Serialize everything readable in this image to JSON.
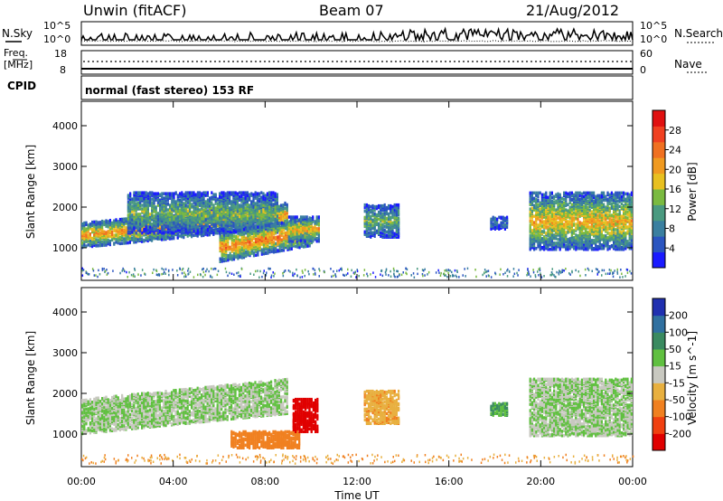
{
  "header": {
    "radar": "Unwin (fitACF)",
    "beam": "Beam 07",
    "date": "21/Aug/2012"
  },
  "sky_panel": {
    "left_label": "N.Sky",
    "right_label": "N.Search",
    "left_ticks": [
      "10^5",
      "10^0"
    ],
    "right_ticks": [
      "10^5",
      "10^0"
    ]
  },
  "freq_panel": {
    "left_label_1": "Freq.",
    "left_label_2": "[MHz]",
    "left_ticks": [
      "18",
      "8"
    ],
    "right_ticks": [
      "60",
      "0"
    ],
    "right_label": "Nave"
  },
  "cpid": {
    "label": "CPID",
    "text": "normal (fast stereo) 153 RF"
  },
  "power_panel": {
    "ylabel": "Slant Range [km]",
    "colorbar_label": "Power [dB]",
    "colorbar_ticks": [
      "28",
      "24",
      "20",
      "16",
      "12",
      "8",
      "4"
    ],
    "colors": [
      "#1a1aff",
      "#2a55c0",
      "#3a7fa0",
      "#4a9a80",
      "#7aba40",
      "#e8c020",
      "#f09a20",
      "#f07020",
      "#f04020",
      "#e01010"
    ]
  },
  "velocity_panel": {
    "ylabel": "Slant Range [km]",
    "colorbar_label": "Velocity [m s^-1]",
    "colorbar_ticks": [
      "200",
      "100",
      "50",
      "15",
      "-15",
      "-50",
      "-100",
      "-200"
    ],
    "colors": [
      "#2030b0",
      "#3070a0",
      "#3a8a60",
      "#60c040",
      "#c8c8c0",
      "#e8b040",
      "#f08020",
      "#f04010",
      "#e00000"
    ]
  },
  "chart_data": [
    {
      "type": "line",
      "ylabel": "N.Sky",
      "note": "Sky noise and search noise time series (log scale 10^0 to 10^5)",
      "ylim": [
        1,
        100000
      ],
      "yscale": "log"
    },
    {
      "type": "line",
      "ylabel": "Freq. [MHz]",
      "ylim": [
        8,
        18
      ],
      "right_ylabel": "Nave",
      "right_ylim": [
        0,
        60
      ],
      "freq_mhz": 10,
      "nave": 40
    },
    {
      "type": "heatmap",
      "title": "",
      "ylabel": "Slant Range [km]",
      "xlabel": "Time UT",
      "x_ticks": [
        "00:00",
        "04:00",
        "08:00",
        "12:00",
        "16:00",
        "20:00",
        "00:00"
      ],
      "y_ticks": [
        1000,
        2000,
        3000,
        4000
      ],
      "xlim_hours": [
        0,
        24
      ],
      "ylim_km": [
        200,
        4600
      ],
      "zlabel": "Power [dB]",
      "zlim": [
        0,
        32
      ],
      "regions": [
        {
          "t0": 0.0,
          "t1": 9.0,
          "r0": 1050,
          "r1": 1650,
          "peak_db": 22
        },
        {
          "t0": 2.0,
          "t1": 8.5,
          "r0": 1400,
          "r1": 2400,
          "peak_db": 14
        },
        {
          "t0": 6.0,
          "t1": 10.0,
          "r0": 700,
          "r1": 1400,
          "peak_db": 24
        },
        {
          "t0": 9.0,
          "t1": 10.3,
          "r0": 1200,
          "r1": 1800,
          "peak_db": 20
        },
        {
          "t0": 12.3,
          "t1": 13.8,
          "r0": 1300,
          "r1": 2100,
          "peak_db": 14
        },
        {
          "t0": 17.8,
          "t1": 18.5,
          "r0": 1500,
          "r1": 1800,
          "peak_db": 8
        },
        {
          "t0": 19.5,
          "t1": 24.0,
          "r0": 1000,
          "r1": 2400,
          "peak_db": 20
        }
      ]
    },
    {
      "type": "heatmap",
      "title": "",
      "ylabel": "Slant Range [km]",
      "xlabel": "Time UT",
      "x_ticks": [
        "00:00",
        "04:00",
        "08:00",
        "12:00",
        "16:00",
        "20:00",
        "00:00"
      ],
      "y_ticks": [
        1000,
        2000,
        3000,
        4000
      ],
      "xlim_hours": [
        0,
        24
      ],
      "ylim_km": [
        200,
        4600
      ],
      "zlabel": "Velocity [m s^-1]",
      "zlim": [
        -200,
        200
      ],
      "regions": [
        {
          "t0": 0.0,
          "t1": 9.0,
          "r0": 1050,
          "r1": 1900,
          "vel": 0
        },
        {
          "t0": 6.5,
          "t1": 9.5,
          "r0": 700,
          "r1": 1100,
          "vel": -70
        },
        {
          "t0": 9.2,
          "t1": 10.3,
          "r0": 1100,
          "r1": 1900,
          "vel": -220
        },
        {
          "t0": 12.3,
          "t1": 13.8,
          "r0": 1300,
          "r1": 2100,
          "vel": -40
        },
        {
          "t0": 17.8,
          "t1": 18.5,
          "r0": 1500,
          "r1": 1800,
          "vel": 30
        },
        {
          "t0": 19.5,
          "t1": 24.0,
          "r0": 1000,
          "r1": 2400,
          "vel": 0
        }
      ]
    }
  ]
}
